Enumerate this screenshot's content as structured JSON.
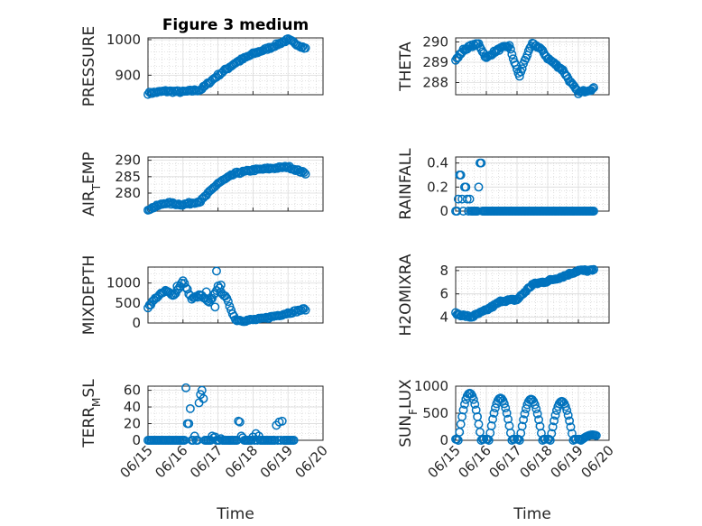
{
  "chart_data": [
    {
      "type": "scatter",
      "title": "Figure 3 medium",
      "ylabel": "PRESSURE",
      "xlim": [
        "06/15",
        "06/20"
      ],
      "ylim": [
        845,
        1005
      ],
      "yticks": [
        900,
        1000
      ],
      "xticks": [
        "06/15",
        "06/16",
        "06/17",
        "06/18",
        "06/19",
        "06/20"
      ],
      "x_hours": [
        0,
        12,
        24,
        36,
        48,
        60,
        72,
        84,
        96,
        108
      ],
      "y_anchor": [
        849,
        855,
        853,
        859,
        900,
        935,
        960,
        978,
        1000,
        975
      ],
      "marker_color": "#0072bd"
    },
    {
      "type": "scatter",
      "ylabel": "THETA",
      "xlim": [
        "06/15",
        "06/20"
      ],
      "ylim": [
        287.4,
        290.2
      ],
      "yticks": [
        288,
        289,
        290
      ],
      "xticks": [
        "06/15",
        "06/16",
        "06/17",
        "06/18",
        "06/19",
        "06/20"
      ],
      "x_hours": [
        0,
        6,
        12,
        18,
        24,
        30,
        36,
        42,
        46,
        50,
        54,
        60,
        66,
        72,
        78,
        84,
        90,
        96,
        102,
        108
      ],
      "y_anchor": [
        289.1,
        289.6,
        289.8,
        289.9,
        289.2,
        289.5,
        289.7,
        289.8,
        289.0,
        288.3,
        289.1,
        289.9,
        289.7,
        289.2,
        288.9,
        288.6,
        288.0,
        287.5,
        287.6,
        287.7
      ],
      "marker_color": "#0072bd"
    },
    {
      "type": "scatter",
      "ylabel_main": "AIR",
      "ylabel_sub": "T",
      "ylabel_tail": "EMP",
      "xlim": [
        "06/15",
        "06/20"
      ],
      "ylim": [
        274.5,
        291
      ],
      "yticks": [
        280,
        285,
        290
      ],
      "xticks": [
        "06/15",
        "06/16",
        "06/17",
        "06/18",
        "06/19",
        "06/20"
      ],
      "x_hours": [
        0,
        12,
        24,
        36,
        48,
        60,
        72,
        84,
        96,
        108
      ],
      "y_anchor": [
        275,
        277,
        276.5,
        277.5,
        283,
        286,
        287,
        287.5,
        288,
        286
      ],
      "marker_color": "#0072bd"
    },
    {
      "type": "scatter",
      "ylabel": "RAINFALL",
      "xlim": [
        "06/15",
        "06/20"
      ],
      "ylim": [
        0,
        0.45
      ],
      "yticks": [
        0,
        0.2,
        0.4
      ],
      "xticks": [
        "06/15",
        "06/16",
        "06/17",
        "06/18",
        "06/19",
        "06/20"
      ],
      "x_hours": [
        2,
        3,
        4,
        5,
        6,
        7,
        8,
        9,
        10,
        11,
        18,
        19,
        20
      ],
      "y_values": [
        0.1,
        0.3,
        0.3,
        0.1,
        0.0,
        0.2,
        0.2,
        0.1,
        0.0,
        0.1,
        0.2,
        0.4,
        0.4
      ],
      "baseline_until_hours": 108,
      "marker_color": "#0072bd"
    },
    {
      "type": "scatter",
      "ylabel": "MIXDEPTH",
      "xlim": [
        "06/15",
        "06/20"
      ],
      "ylim": [
        0,
        1400
      ],
      "yticks": [
        0,
        500,
        1000
      ],
      "xticks": [
        "06/15",
        "06/16",
        "06/17",
        "06/18",
        "06/19",
        "06/20"
      ],
      "x_hours": [
        0,
        6,
        12,
        18,
        24,
        30,
        36,
        42,
        48,
        54,
        60,
        66,
        72,
        78,
        84,
        90,
        96,
        102,
        108
      ],
      "y_anchor": [
        400,
        650,
        800,
        700,
        1050,
        600,
        700,
        500,
        900,
        600,
        80,
        60,
        80,
        100,
        150,
        200,
        250,
        300,
        350
      ],
      "extra_points": [
        [
          47,
          1300
        ],
        [
          50,
          950
        ],
        [
          46,
          400
        ],
        [
          40,
          780
        ],
        [
          20,
          920
        ]
      ],
      "marker_color": "#0072bd"
    },
    {
      "type": "scatter",
      "ylabel": "H2OMIXRA",
      "xlim": [
        "06/15",
        "06/20"
      ],
      "ylim": [
        3.5,
        8.3
      ],
      "yticks": [
        4,
        6,
        8
      ],
      "xticks": [
        "06/15",
        "06/16",
        "06/17",
        "06/18",
        "06/19",
        "06/20"
      ],
      "x_hours": [
        0,
        12,
        24,
        36,
        48,
        60,
        72,
        84,
        96,
        108
      ],
      "y_anchor": [
        4.3,
        4.0,
        4.6,
        5.4,
        5.5,
        6.8,
        7.1,
        7.5,
        8.0,
        8.0
      ],
      "marker_color": "#0072bd"
    },
    {
      "type": "scatter",
      "ylabel_main": "TERR",
      "ylabel_sub": "M",
      "ylabel_tail": "SL",
      "xlim": [
        "06/15",
        "06/20"
      ],
      "ylim": [
        0,
        65
      ],
      "yticks": [
        0,
        20,
        40,
        60
      ],
      "xticks": [
        "06/15",
        "06/16",
        "06/17",
        "06/18",
        "06/19",
        "06/20"
      ],
      "xlabel": "Time",
      "x_hours": [
        26,
        27,
        28,
        29,
        32,
        35,
        36,
        37,
        38,
        44,
        45,
        46,
        50,
        62,
        63,
        64,
        65,
        72,
        74,
        76,
        88,
        90,
        92
      ],
      "y_values": [
        63,
        20,
        20,
        38,
        5,
        45,
        55,
        60,
        50,
        5,
        3,
        4,
        2,
        23,
        22,
        5,
        3,
        4,
        8,
        5,
        18,
        22,
        23
      ],
      "baseline_until_hours": 100,
      "marker_color": "#0072bd"
    },
    {
      "type": "scatter",
      "ylabel_main": "SUN",
      "ylabel_sub": "F",
      "ylabel_tail": "LUX",
      "xlim": [
        "06/15",
        "06/20"
      ],
      "ylim": [
        0,
        1000
      ],
      "yticks": [
        0,
        500,
        1000
      ],
      "xticks": [
        "06/15",
        "06/16",
        "06/17",
        "06/18",
        "06/19",
        "06/20"
      ],
      "xlabel": "Time",
      "daily_peaks": [
        {
          "start_hour": 0,
          "peak": 870
        },
        {
          "start_hour": 24,
          "peak": 780
        },
        {
          "start_hour": 48,
          "peak": 760
        },
        {
          "start_hour": 72,
          "peak": 720
        },
        {
          "start_hour": 96,
          "peak": 100
        }
      ],
      "marker_color": "#0072bd"
    }
  ]
}
